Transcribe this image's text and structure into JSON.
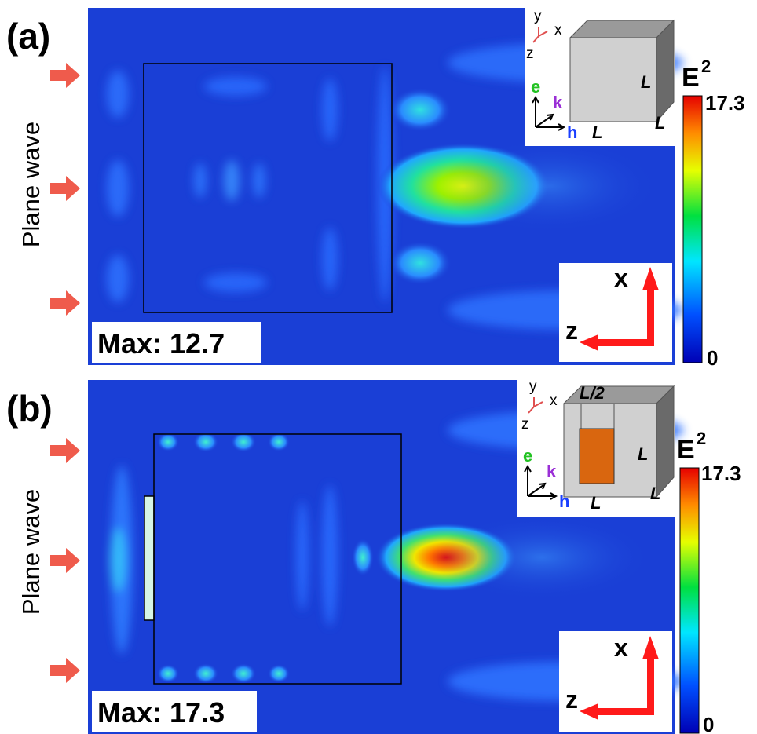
{
  "panels": [
    {
      "label": "(a)",
      "max_label": "Max: 12.7",
      "source_label": "Plane wave",
      "colorbar": {
        "title": "E",
        "title_sup": "2",
        "max": "17.3",
        "min": "0"
      },
      "axes": {
        "up": "x",
        "left": "z"
      },
      "inset": {
        "coord": [
          "y",
          "x",
          "z"
        ],
        "vectors": [
          "e",
          "k",
          "h"
        ],
        "dims": [
          "L",
          "L",
          "L"
        ],
        "extra_label": "",
        "has_patch": false
      }
    },
    {
      "label": "(b)",
      "max_label": "Max: 17.3",
      "source_label": "Plane wave",
      "colorbar": {
        "title": "E",
        "title_sup": "2",
        "max": "17.3",
        "min": "0"
      },
      "axes": {
        "up": "x",
        "left": "z"
      },
      "inset": {
        "coord": [
          "y",
          "x",
          "z"
        ],
        "vectors": [
          "e",
          "k",
          "h"
        ],
        "dims": [
          "L",
          "L",
          "L"
        ],
        "extra_label": "L/2",
        "has_patch": true
      }
    }
  ],
  "colors": {
    "field_background": "#1a3fd6",
    "arrow": "#ef5b4c",
    "axis_arrow": "#ff1a1a",
    "e_vector": "#22c222",
    "k_vector": "#9a2fd6",
    "h_vector": "#1a3fff",
    "patch": "#d9660f",
    "colorbar_stops": [
      "#0000b4",
      "#0050ff",
      "#00e6ff",
      "#00e040",
      "#e6ff00",
      "#ff8c00",
      "#e60000"
    ]
  }
}
